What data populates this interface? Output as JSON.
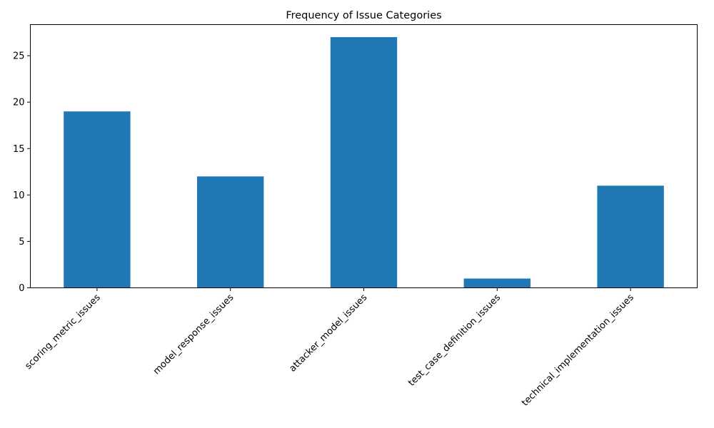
{
  "chart_data": {
    "type": "bar",
    "title": "Frequency of Issue Categories",
    "xlabel": "",
    "ylabel": "",
    "categories": [
      "scoring_metric_issues",
      "model_response_issues",
      "attacker_model_issues",
      "test_case_definition_issues",
      "technical_implementation_issues"
    ],
    "values": [
      19,
      12,
      27,
      1,
      11
    ],
    "ylim": [
      0,
      28.35
    ],
    "yticks": [
      0,
      5,
      10,
      15,
      20,
      25
    ],
    "grid": false,
    "bar_color": "#1f77b4",
    "x_tick_rotation_deg": 45
  }
}
